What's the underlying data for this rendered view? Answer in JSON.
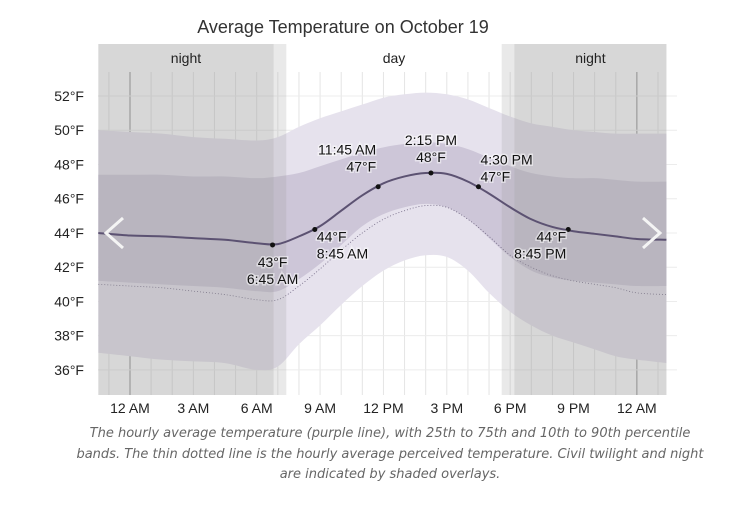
{
  "chart_data": {
    "type": "area",
    "title": "Average Temperature on October 19",
    "x_unit": "hour of day",
    "x_ticks": [
      "12 AM",
      "3 AM",
      "6 AM",
      "9 AM",
      "12 PM",
      "3 PM",
      "6 PM",
      "9 PM",
      "12 AM"
    ],
    "x_tick_hours": [
      0,
      3,
      6,
      9,
      12,
      15,
      18,
      21,
      24
    ],
    "y_ticks": [
      "36°F",
      "38°F",
      "40°F",
      "42°F",
      "44°F",
      "46°F",
      "48°F",
      "50°F",
      "52°F"
    ],
    "y_tick_values": [
      36,
      38,
      40,
      42,
      44,
      46,
      48,
      50,
      52
    ],
    "xlim": [
      -1.5,
      25.4
    ],
    "ylim": [
      34.5,
      55
    ],
    "grid": true,
    "periods": [
      {
        "label": "night",
        "start": -1.5,
        "end": 6.8,
        "twilight_end": 7.4
      },
      {
        "label": "day",
        "start": 7.4,
        "end": 17.6
      },
      {
        "label": "night",
        "start": 18.2,
        "end": 25.4,
        "twilight_start": 17.6
      }
    ],
    "hours": [
      -1.5,
      0,
      1.5,
      3,
      4.5,
      6,
      7,
      8,
      9,
      10,
      11,
      12,
      13,
      14,
      15,
      16,
      17,
      18,
      19,
      20,
      21,
      22,
      23,
      24,
      25.4
    ],
    "mean": [
      44.0,
      43.85,
      43.8,
      43.7,
      43.6,
      43.4,
      43.35,
      43.8,
      44.4,
      45.3,
      46.2,
      46.9,
      47.3,
      47.5,
      47.45,
      47.0,
      46.3,
      45.5,
      44.8,
      44.35,
      44.1,
      43.95,
      43.8,
      43.65,
      43.6
    ],
    "p25": [
      41.2,
      41.1,
      41.0,
      40.9,
      40.8,
      40.6,
      40.6,
      41.3,
      42.2,
      43.3,
      44.4,
      45.1,
      45.5,
      45.7,
      45.5,
      44.8,
      43.7,
      42.6,
      41.8,
      41.4,
      41.2,
      41.1,
      41.0,
      40.9,
      40.9
    ],
    "p75": [
      47.4,
      47.4,
      47.4,
      47.3,
      47.3,
      47.2,
      47.3,
      47.5,
      47.9,
      48.3,
      48.7,
      49.0,
      49.2,
      49.3,
      49.2,
      48.9,
      48.4,
      47.9,
      47.5,
      47.3,
      47.2,
      47.2,
      47.1,
      47.0,
      47.0
    ],
    "p10": [
      37.0,
      36.8,
      36.6,
      36.5,
      36.4,
      36.0,
      36.2,
      37.5,
      38.6,
      39.8,
      40.9,
      41.8,
      42.4,
      42.7,
      42.6,
      41.8,
      40.5,
      39.4,
      38.6,
      38.0,
      37.6,
      37.2,
      36.8,
      36.6,
      36.4
    ],
    "p90": [
      50.0,
      49.9,
      49.8,
      49.6,
      49.5,
      49.4,
      49.6,
      50.2,
      50.7,
      51.1,
      51.5,
      51.9,
      52.1,
      52.2,
      52.1,
      51.8,
      51.3,
      50.8,
      50.4,
      50.2,
      50.0,
      49.9,
      49.8,
      49.8,
      49.8
    ],
    "perceived": [
      41.0,
      40.9,
      40.8,
      40.6,
      40.4,
      40.1,
      40.1,
      40.9,
      41.9,
      43.0,
      44.0,
      44.8,
      45.3,
      45.6,
      45.5,
      44.8,
      43.8,
      42.7,
      42.0,
      41.5,
      41.2,
      41.0,
      40.8,
      40.5,
      40.4
    ],
    "annotations": [
      {
        "hour": 6.75,
        "temp": 43.3,
        "line1": "43°F",
        "line2": "6:45 AM",
        "pos": "below"
      },
      {
        "hour": 8.75,
        "temp": 44.2,
        "line1": "44°F",
        "line2": "8:45 AM",
        "pos": "below-right"
      },
      {
        "hour": 11.75,
        "temp": 46.7,
        "line1": "11:45 AM",
        "line2": "47°F",
        "pos": "above-left"
      },
      {
        "hour": 14.25,
        "temp": 47.5,
        "line1": "2:15 PM",
        "line2": "48°F",
        "pos": "above"
      },
      {
        "hour": 16.5,
        "temp": 46.7,
        "line1": "4:30 PM",
        "line2": "47°F",
        "pos": "above-right"
      },
      {
        "hour": 20.75,
        "temp": 44.2,
        "line1": "44°F",
        "line2": "8:45 PM",
        "pos": "below-left"
      }
    ],
    "colors": {
      "p10_90": "#e6e2ed",
      "p25_75": "#cdc6d8",
      "mean": "#5c5272",
      "night": "#9a9a9a",
      "perceived": "#6e6480"
    }
  },
  "caption": "The hourly average temperature (purple line), with 25th to 75th and 10th to 90th percentile bands. The thin dotted line is the hourly average perceived temperature. Civil twilight and night are indicated by shaded overlays.",
  "nav": {
    "prev_icon": "chevron-left-icon",
    "next_icon": "chevron-right-icon"
  }
}
